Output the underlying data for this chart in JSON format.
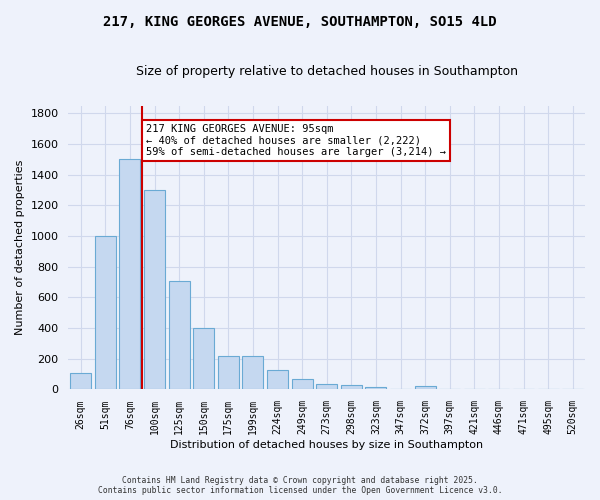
{
  "title": "217, KING GEORGES AVENUE, SOUTHAMPTON, SO15 4LD",
  "subtitle": "Size of property relative to detached houses in Southampton",
  "xlabel": "Distribution of detached houses by size in Southampton",
  "ylabel": "Number of detached properties",
  "bar_labels": [
    "26sqm",
    "51sqm",
    "76sqm",
    "100sqm",
    "125sqm",
    "150sqm",
    "175sqm",
    "199sqm",
    "224sqm",
    "249sqm",
    "273sqm",
    "298sqm",
    "323sqm",
    "347sqm",
    "372sqm",
    "397sqm",
    "421sqm",
    "446sqm",
    "471sqm",
    "495sqm",
    "520sqm"
  ],
  "bar_values": [
    110,
    1000,
    1500,
    1300,
    710,
    400,
    215,
    215,
    130,
    70,
    38,
    30,
    15,
    0,
    20,
    0,
    0,
    0,
    0,
    0,
    0
  ],
  "bar_color": "#c5d8f0",
  "bar_edge_color": "#6aaad4",
  "redline_index": 2,
  "redline_color": "#cc0000",
  "annotation_text": "217 KING GEORGES AVENUE: 95sqm\n← 40% of detached houses are smaller (2,222)\n59% of semi-detached houses are larger (3,214) →",
  "annotation_box_color": "#ffffff",
  "annotation_box_edge": "#cc0000",
  "ylim": [
    0,
    1850
  ],
  "yticks": [
    0,
    200,
    400,
    600,
    800,
    1000,
    1200,
    1400,
    1600,
    1800
  ],
  "footer1": "Contains HM Land Registry data © Crown copyright and database right 2025.",
  "footer2": "Contains public sector information licensed under the Open Government Licence v3.0.",
  "bg_color": "#eef2fb",
  "plot_bg_color": "#eef2fb",
  "grid_color": "#d0d8ec",
  "title_fontsize": 10,
  "subtitle_fontsize": 9
}
